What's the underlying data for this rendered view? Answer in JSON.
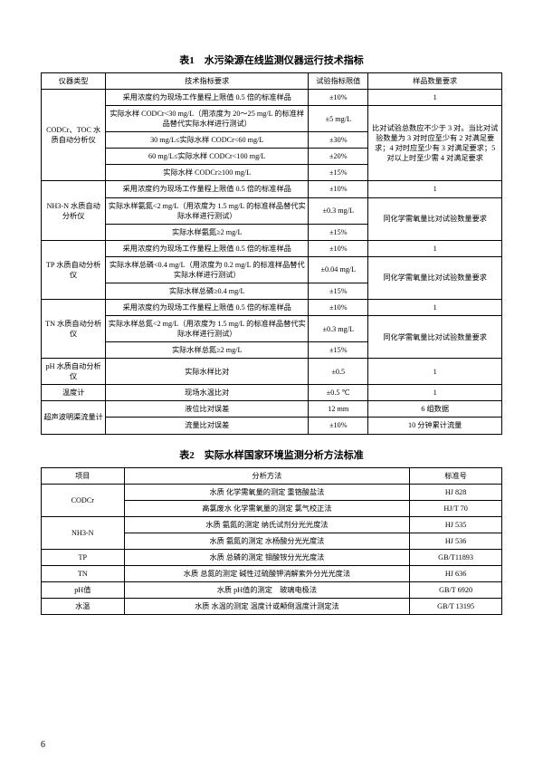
{
  "captions": {
    "t1": "表1　水污染源在线监测仪器运行技术指标",
    "t2": "表2　实际水样国家环境监测分析方法标准"
  },
  "t1": {
    "h1": "仪器类型",
    "h2": "技术指标要求",
    "h3": "试验指标限值",
    "h4": "样品数量要求",
    "cod": {
      "name": "CODCr、TOC 水质自动分析仪",
      "r1a": "采用浓度约为现场工作量程上限值 0.5 倍的标准样品",
      "r1b": "±10%",
      "r1c": "1",
      "r2a": "实际水样 CODCr<30 mg/L（用浓度为 20～25 mg/L 的标准样品替代实际水样进行测试）",
      "r2b": "±5 mg/L",
      "r3a": "30 mg/L≤实际水样 CODCr<60 mg/L",
      "r3b": "±30%",
      "r4a": "60 mg/L≤实际水样 CODCr<100 mg/L",
      "r4b": "±20%",
      "r5a": "实际水样 CODCr≥100 mg/L",
      "r5b": "±15%",
      "note": "比对试验总数应不少于 3 对。当比对试验数量为 3 对时应至少有 2 对满足要求；4 对时应至少有 3 对满足要求；5 对以上时至少需 4 对满足要求"
    },
    "nh": {
      "name": "NH3-N 水质自动分析仪",
      "r1a": "采用浓度约为现场工作量程上限值 0.5 倍的标准样品",
      "r1b": "±10%",
      "r1c": "1",
      "r2a": "实际水样氨氮<2 mg/L（用浓度为 1.5 mg/L 的标准样品替代实际水样进行测试）",
      "r2b": "±0.3 mg/L",
      "r3a": "实际水样氨氮≥2 mg/L",
      "r3b": "±15%",
      "note": "同化学需氧量比对试验数量要求"
    },
    "tp": {
      "name": "TP 水质自动分析仪",
      "r1a": "采用浓度约为现场工作量程上限值 0.5 倍的标准样品",
      "r1b": "±10%",
      "r1c": "1",
      "r2a": "实际水样总磷<0.4 mg/L（用浓度为 0.2 mg/L 的标准样品替代实际水样进行测试）",
      "r2b": "±0.04 mg/L",
      "r3a": "实际水样总磷≥0.4 mg/L",
      "r3b": "±15%",
      "note": "同化学需氧量比对试验数量要求"
    },
    "tn": {
      "name": "TN 水质自动分析仪",
      "r1a": "采用浓度约为现场工作量程上限值 0.5 倍的标准样品",
      "r1b": "±10%",
      "r1c": "1",
      "r2a": "实际水样总氮<2 mg/L（用浓度为 1.5 mg/L 的标准样品替代实际水样进行测试）",
      "r2b": "±0.3 mg/L",
      "r3a": "实际水样总氮≥2 mg/L",
      "r3b": "±15%",
      "note": "同化学需氧量比对试验数量要求"
    },
    "ph": {
      "name": "pH 水质自动分析仪",
      "a": "实际水样比对",
      "b": "±0.5",
      "c": "1"
    },
    "temp": {
      "name": "温度计",
      "a": "现场水温比对",
      "b": "±0.5 ℃",
      "c": "1"
    },
    "us": {
      "name": "超声波明渠流量计",
      "r1a": "液位比对误差",
      "r1b": "12 mm",
      "r1c": "6 组数据",
      "r2a": "流量比对误差",
      "r2b": "±10%",
      "r2c": "10 分钟累计流量"
    }
  },
  "t2": {
    "h1": "项目",
    "h2": "分析方法",
    "h3": "标准号",
    "rows": [
      {
        "p": "CODCr",
        "m": "水质 化学需氧量的测定 重铬酸盐法",
        "s": "HJ 828",
        "rs": 2
      },
      {
        "m": "高氯废水 化学需氧量的测定 氯气校正法",
        "s": "HJ/T 70"
      },
      {
        "p": "NH3-N",
        "m": "水质 氨氮的测定 纳氏试剂分光光度法",
        "s": "HJ 535",
        "rs": 2
      },
      {
        "m": "水质 氨氮的测定 水杨酸分光光度法",
        "s": "HJ 536"
      },
      {
        "p": "TP",
        "m": "水质 总磷的测定 钼酸铵分光光度法",
        "s": "GB/T11893",
        "rs": 1
      },
      {
        "p": "TN",
        "m": "水质 总氮的测定 碱性过硫酸钾消解紫外分光光度法",
        "s": "HJ 636",
        "rs": 1
      },
      {
        "p": "pH值",
        "m": "水质 pH值的测定　玻璃电极法",
        "s": "GB/T 6920",
        "rs": 1
      },
      {
        "p": "水温",
        "m": "水质 水温的测定 温度计或颠倒温度计测定法",
        "s": "GB/T 13195",
        "rs": 1
      }
    ]
  },
  "page": "6"
}
